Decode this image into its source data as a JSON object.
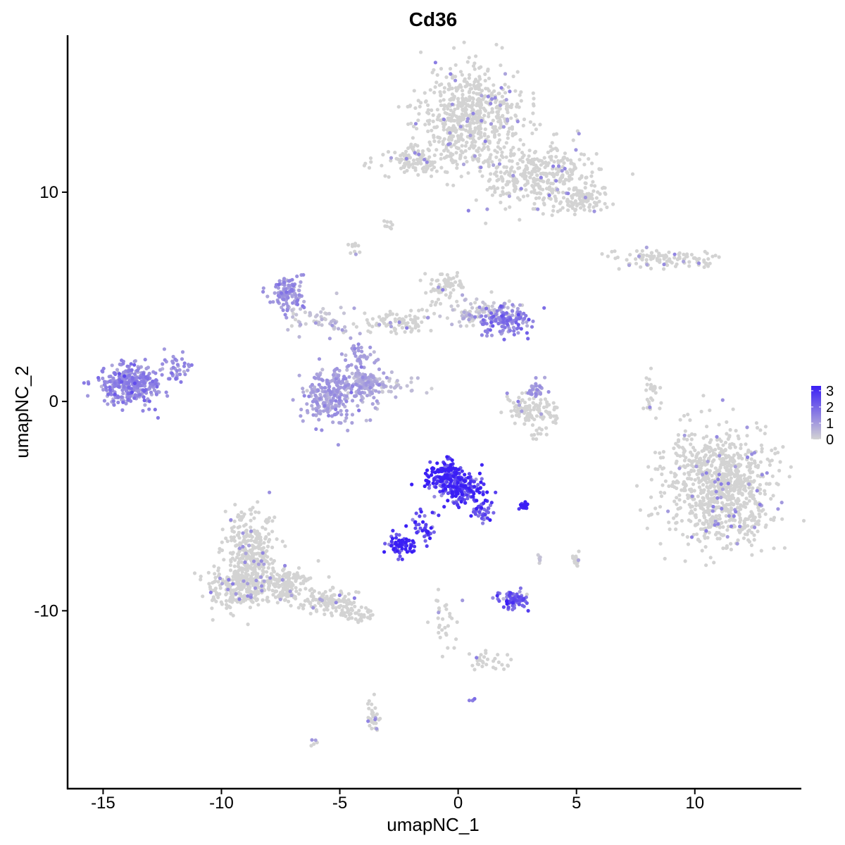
{
  "chart_data": {
    "type": "scatter",
    "title": "Cd36",
    "xlabel": "umapNC_1",
    "ylabel": "umapNC_2",
    "xlim": [
      -16.5,
      14.5
    ],
    "ylim": [
      -18.5,
      17.5
    ],
    "xticks": [
      -15,
      -10,
      -5,
      0,
      5,
      10
    ],
    "yticks": [
      -10,
      0,
      10
    ],
    "xtick_labels": [
      "-15",
      "-10",
      "-5",
      "0",
      "5",
      "10"
    ],
    "ytick_labels": [
      "-10",
      "0",
      "10"
    ],
    "grid": false,
    "legend_position": "right",
    "color_scale": {
      "low": "#d3d3d3",
      "high": "#3a1ef5",
      "min": 0,
      "max": 3.3,
      "ticks": [
        0,
        1,
        2,
        3
      ],
      "tick_labels": [
        "0",
        "1",
        "2",
        "3"
      ]
    },
    "clusters": [
      {
        "center": [
          0.6,
          13.6
        ],
        "spread": [
          1.4,
          1.6
        ],
        "points": 650,
        "expr": 0.05
      },
      {
        "center": [
          3.5,
          10.8
        ],
        "spread": [
          1.5,
          1.0
        ],
        "points": 350,
        "expr": 0.1
      },
      {
        "center": [
          5.3,
          9.7
        ],
        "spread": [
          0.7,
          0.5
        ],
        "points": 90,
        "expr": 0.1
      },
      {
        "center": [
          -1.8,
          11.5
        ],
        "spread": [
          1.1,
          0.4
        ],
        "points": 110,
        "expr": 0.05
      },
      {
        "center": [
          -3.0,
          8.5
        ],
        "spread": [
          0.2,
          0.2
        ],
        "points": 8,
        "expr": 0.05
      },
      {
        "center": [
          -4.4,
          7.3
        ],
        "spread": [
          0.2,
          0.3
        ],
        "points": 10,
        "expr": 0.1
      },
      {
        "center": [
          8.6,
          6.8
        ],
        "spread": [
          1.6,
          0.3
        ],
        "points": 110,
        "expr": 0.15
      },
      {
        "center": [
          9.4,
          -3.7
        ],
        "spread": [
          1.0,
          2.0
        ],
        "points": 120,
        "expr": 0.2
      },
      {
        "center": [
          11.3,
          -4.1
        ],
        "spread": [
          1.3,
          1.8
        ],
        "points": 800,
        "expr": 0.2
      },
      {
        "center": [
          8.2,
          0.3
        ],
        "spread": [
          0.3,
          0.8
        ],
        "points": 30,
        "expr": 0.1
      },
      {
        "center": [
          -13.9,
          0.8
        ],
        "spread": [
          0.8,
          0.6
        ],
        "points": 340,
        "expr": 1.3
      },
      {
        "center": [
          -12.0,
          1.6
        ],
        "spread": [
          0.5,
          0.5
        ],
        "points": 40,
        "expr": 1.2
      },
      {
        "center": [
          -7.2,
          5.2
        ],
        "spread": [
          0.5,
          0.6
        ],
        "points": 120,
        "expr": 1.1
      },
      {
        "center": [
          -5.8,
          3.8
        ],
        "spread": [
          0.9,
          0.5
        ],
        "points": 60,
        "expr": 0.3
      },
      {
        "center": [
          -5.4,
          0.3
        ],
        "spread": [
          0.8,
          0.9
        ],
        "points": 240,
        "expr": 0.9
      },
      {
        "center": [
          -3.9,
          0.8
        ],
        "spread": [
          0.5,
          0.6
        ],
        "points": 120,
        "expr": 0.8
      },
      {
        "center": [
          -4.2,
          2.2
        ],
        "spread": [
          0.4,
          0.5
        ],
        "points": 40,
        "expr": 0.9
      },
      {
        "center": [
          -2.6,
          0.8
        ],
        "spread": [
          0.8,
          0.3
        ],
        "points": 35,
        "expr": 0.4
      },
      {
        "center": [
          -2.5,
          3.8
        ],
        "spread": [
          1.0,
          0.4
        ],
        "points": 90,
        "expr": 0.1
      },
      {
        "center": [
          -0.6,
          5.5
        ],
        "spread": [
          0.5,
          0.5
        ],
        "points": 70,
        "expr": 0.05
      },
      {
        "center": [
          0.8,
          4.2
        ],
        "spread": [
          0.9,
          0.4
        ],
        "points": 90,
        "expr": 0.3
      },
      {
        "center": [
          2.0,
          3.9
        ],
        "spread": [
          0.7,
          0.5
        ],
        "points": 140,
        "expr": 1.5
      },
      {
        "center": [
          3.2,
          -0.5
        ],
        "spread": [
          0.8,
          0.5
        ],
        "points": 110,
        "expr": 0.2
      },
      {
        "center": [
          3.3,
          0.6
        ],
        "spread": [
          0.25,
          0.3
        ],
        "points": 30,
        "expr": 1.0
      },
      {
        "center": [
          -0.6,
          -3.5
        ],
        "spread": [
          0.5,
          0.5
        ],
        "points": 130,
        "expr": 3.1
      },
      {
        "center": [
          0.2,
          -4.2
        ],
        "spread": [
          0.6,
          0.5
        ],
        "points": 160,
        "expr": 2.7
      },
      {
        "center": [
          1.0,
          -5.2
        ],
        "spread": [
          0.3,
          0.4
        ],
        "points": 40,
        "expr": 2.4
      },
      {
        "center": [
          -1.5,
          -6.0
        ],
        "spread": [
          0.4,
          0.5
        ],
        "points": 40,
        "expr": 2.6
      },
      {
        "center": [
          -2.4,
          -6.9
        ],
        "spread": [
          0.35,
          0.3
        ],
        "points": 80,
        "expr": 2.8
      },
      {
        "center": [
          2.8,
          -5.0
        ],
        "spread": [
          0.2,
          0.1
        ],
        "points": 20,
        "expr": 3.2
      },
      {
        "center": [
          2.3,
          -9.5
        ],
        "spread": [
          0.4,
          0.3
        ],
        "points": 70,
        "expr": 2.0
      },
      {
        "center": [
          3.4,
          -7.5
        ],
        "spread": [
          0.1,
          0.2
        ],
        "points": 6,
        "expr": 0.4
      },
      {
        "center": [
          5.0,
          -7.6
        ],
        "spread": [
          0.1,
          0.3
        ],
        "points": 15,
        "expr": 0.1
      },
      {
        "center": [
          -8.8,
          -7.2
        ],
        "spread": [
          0.7,
          1.3
        ],
        "points": 320,
        "expr": 0.1
      },
      {
        "center": [
          -9.3,
          -8.9
        ],
        "spread": [
          0.9,
          0.8
        ],
        "points": 240,
        "expr": 0.1
      },
      {
        "center": [
          -7.2,
          -8.8
        ],
        "spread": [
          0.7,
          0.6
        ],
        "points": 150,
        "expr": 0.1
      },
      {
        "center": [
          -5.4,
          -9.6
        ],
        "spread": [
          0.8,
          0.4
        ],
        "points": 120,
        "expr": 0.05
      },
      {
        "center": [
          -4.2,
          -10.2
        ],
        "spread": [
          0.4,
          0.2
        ],
        "points": 40,
        "expr": 0.05
      },
      {
        "center": [
          -0.6,
          -10.5
        ],
        "spread": [
          0.3,
          0.8
        ],
        "points": 30,
        "expr": 0.05
      },
      {
        "center": [
          1.5,
          -12.4
        ],
        "spread": [
          0.7,
          0.3
        ],
        "points": 30,
        "expr": 0.05
      },
      {
        "center": [
          -3.6,
          -15.0
        ],
        "spread": [
          0.2,
          0.5
        ],
        "points": 35,
        "expr": 0.1
      },
      {
        "center": [
          -6.1,
          -16.3
        ],
        "spread": [
          0.1,
          0.1
        ],
        "points": 5,
        "expr": 0.05
      },
      {
        "center": [
          0.6,
          -14.2
        ],
        "spread": [
          0.1,
          0.1
        ],
        "points": 4,
        "expr": 1.5
      },
      {
        "center": [
          3.4,
          -1.6
        ],
        "spread": [
          0.2,
          0.3
        ],
        "points": 10,
        "expr": 0.1
      }
    ]
  }
}
